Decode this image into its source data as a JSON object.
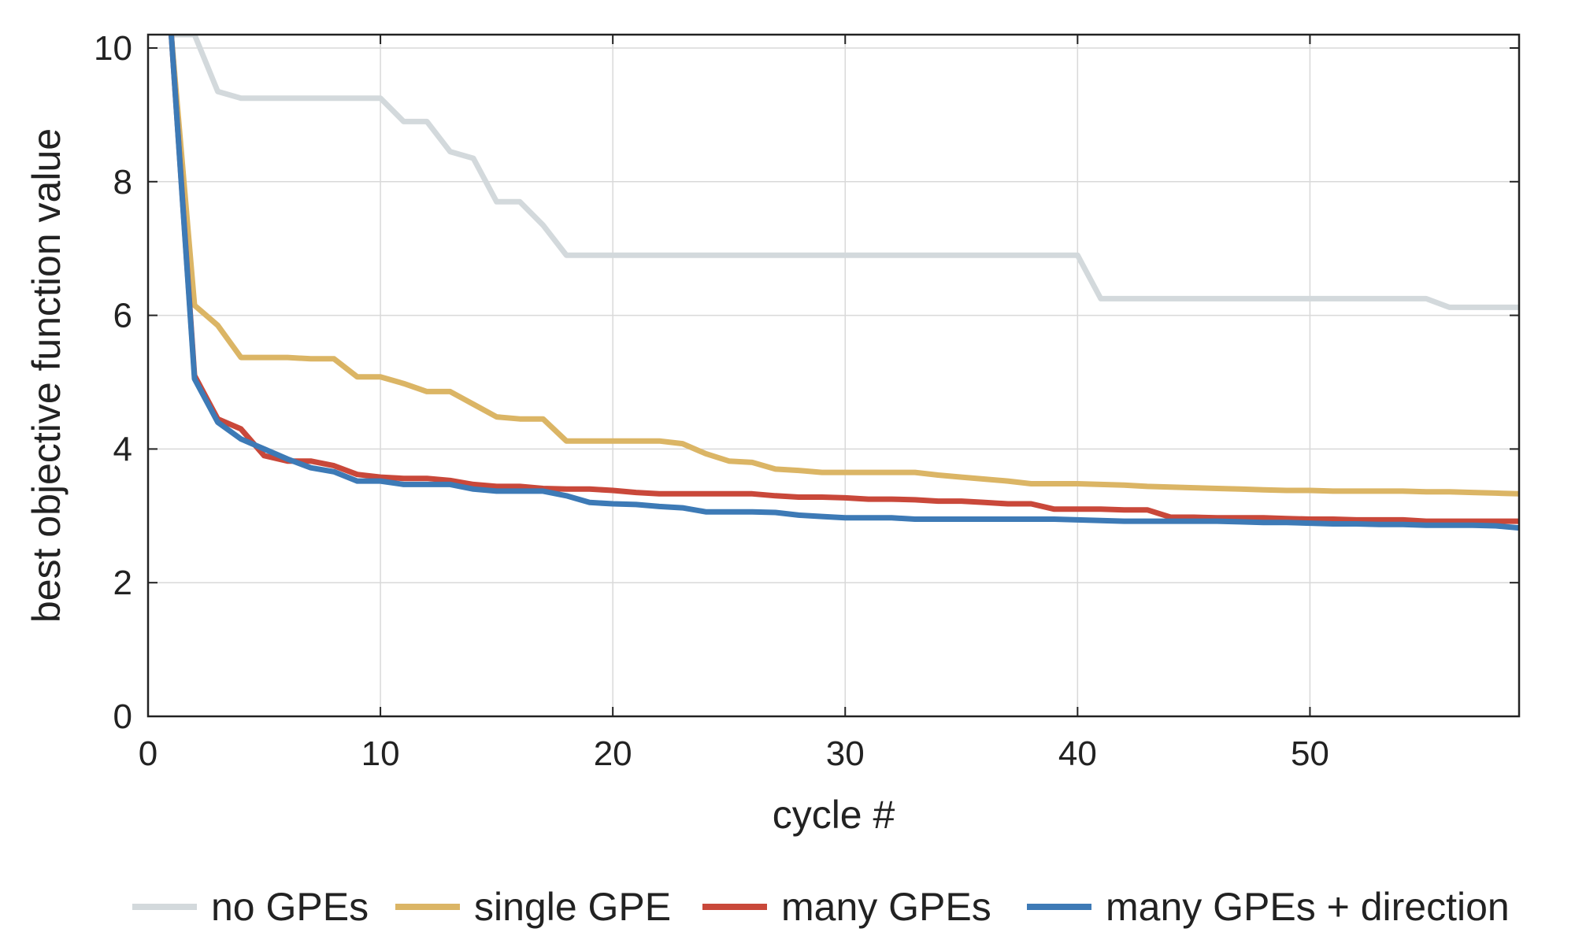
{
  "chart_data": {
    "type": "line",
    "title": "",
    "xlabel": "cycle #",
    "ylabel": "best objective function value",
    "xlim": [
      0,
      59
    ],
    "ylim": [
      0,
      10.2
    ],
    "xticks": [
      0,
      10,
      20,
      30,
      40,
      50
    ],
    "yticks": [
      0,
      2,
      4,
      6,
      8,
      10
    ],
    "grid": true,
    "legend_position": "bottom",
    "x": [
      1,
      2,
      3,
      4,
      5,
      6,
      7,
      8,
      9,
      10,
      11,
      12,
      13,
      14,
      15,
      16,
      17,
      18,
      19,
      20,
      21,
      22,
      23,
      24,
      25,
      26,
      27,
      28,
      29,
      30,
      31,
      32,
      33,
      34,
      35,
      36,
      37,
      38,
      39,
      40,
      41,
      42,
      43,
      44,
      45,
      46,
      47,
      48,
      49,
      50,
      51,
      52,
      53,
      54,
      55,
      56,
      57,
      58,
      59
    ],
    "series": [
      {
        "name": "no GPEs",
        "color": "#d3d9dc",
        "values": [
          10.2,
          10.2,
          9.35,
          9.25,
          9.25,
          9.25,
          9.25,
          9.25,
          9.25,
          9.25,
          8.9,
          8.9,
          8.45,
          8.35,
          7.7,
          7.7,
          7.35,
          6.9,
          6.9,
          6.9,
          6.9,
          6.9,
          6.9,
          6.9,
          6.9,
          6.9,
          6.9,
          6.9,
          6.9,
          6.9,
          6.9,
          6.9,
          6.9,
          6.9,
          6.9,
          6.9,
          6.9,
          6.9,
          6.9,
          6.9,
          6.25,
          6.25,
          6.25,
          6.25,
          6.25,
          6.25,
          6.25,
          6.25,
          6.25,
          6.25,
          6.25,
          6.25,
          6.25,
          6.25,
          6.25,
          6.12,
          6.12,
          6.12,
          6.12
        ]
      },
      {
        "name": "single GPE",
        "color": "#dbb565",
        "values": [
          10.2,
          6.15,
          5.85,
          5.37,
          5.37,
          5.37,
          5.35,
          5.35,
          5.08,
          5.08,
          4.98,
          4.86,
          4.86,
          4.67,
          4.48,
          4.45,
          4.45,
          4.12,
          4.12,
          4.12,
          4.12,
          4.12,
          4.08,
          3.93,
          3.82,
          3.8,
          3.7,
          3.68,
          3.65,
          3.65,
          3.65,
          3.65,
          3.65,
          3.61,
          3.58,
          3.55,
          3.52,
          3.48,
          3.48,
          3.48,
          3.47,
          3.46,
          3.44,
          3.43,
          3.42,
          3.41,
          3.4,
          3.39,
          3.38,
          3.38,
          3.37,
          3.37,
          3.37,
          3.37,
          3.36,
          3.36,
          3.35,
          3.34,
          3.33
        ]
      },
      {
        "name": "many GPEs",
        "color": "#c9483a",
        "values": [
          10.2,
          5.1,
          4.45,
          4.3,
          3.9,
          3.82,
          3.82,
          3.75,
          3.62,
          3.58,
          3.56,
          3.56,
          3.53,
          3.47,
          3.44,
          3.44,
          3.41,
          3.4,
          3.4,
          3.38,
          3.35,
          3.33,
          3.33,
          3.33,
          3.33,
          3.33,
          3.3,
          3.28,
          3.28,
          3.27,
          3.25,
          3.25,
          3.24,
          3.22,
          3.22,
          3.2,
          3.18,
          3.18,
          3.1,
          3.1,
          3.1,
          3.09,
          3.09,
          2.98,
          2.98,
          2.97,
          2.97,
          2.97,
          2.96,
          2.95,
          2.95,
          2.94,
          2.94,
          2.94,
          2.92,
          2.92,
          2.92,
          2.92,
          2.92
        ]
      },
      {
        "name": "many GPEs + direction",
        "color": "#3d7ab6",
        "values": [
          10.2,
          5.05,
          4.4,
          4.15,
          4.0,
          3.85,
          3.72,
          3.66,
          3.52,
          3.52,
          3.47,
          3.47,
          3.47,
          3.4,
          3.37,
          3.37,
          3.37,
          3.3,
          3.2,
          3.18,
          3.17,
          3.14,
          3.12,
          3.06,
          3.06,
          3.06,
          3.05,
          3.01,
          2.99,
          2.97,
          2.97,
          2.97,
          2.95,
          2.95,
          2.95,
          2.95,
          2.95,
          2.95,
          2.95,
          2.94,
          2.93,
          2.92,
          2.92,
          2.92,
          2.92,
          2.92,
          2.91,
          2.9,
          2.9,
          2.89,
          2.88,
          2.88,
          2.87,
          2.87,
          2.86,
          2.86,
          2.86,
          2.85,
          2.82
        ]
      }
    ]
  }
}
